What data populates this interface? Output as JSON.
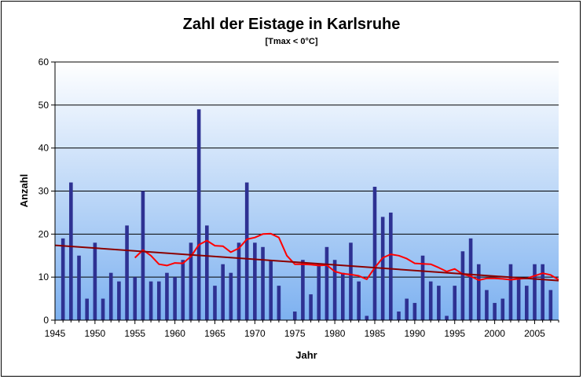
{
  "chart_data": {
    "type": "bar",
    "title": "Zahl der Eistage in Karlsruhe",
    "subtitle": "[Tmax < 0°C]",
    "xlabel": "Jahr",
    "ylabel": "Anzahl",
    "xlim": [
      1945,
      2008
    ],
    "ylim": [
      0,
      60
    ],
    "x_ticks": [
      "1945",
      "1950",
      "1955",
      "1960",
      "1965",
      "1970",
      "1975",
      "1980",
      "1985",
      "1990",
      "1995",
      "2000",
      "2005"
    ],
    "y_ticks": [
      "0",
      "10",
      "20",
      "30",
      "40",
      "50",
      "60"
    ],
    "grid": true,
    "legend": "none",
    "series": [
      {
        "kind": "bar",
        "color": "#2e3192",
        "x": [
          1946,
          1947,
          1948,
          1949,
          1950,
          1951,
          1952,
          1953,
          1954,
          1955,
          1956,
          1957,
          1958,
          1959,
          1960,
          1961,
          1962,
          1963,
          1964,
          1965,
          1966,
          1967,
          1968,
          1969,
          1970,
          1971,
          1972,
          1973,
          1974,
          1975,
          1976,
          1977,
          1978,
          1979,
          1980,
          1981,
          1982,
          1983,
          1984,
          1985,
          1986,
          1987,
          1988,
          1989,
          1990,
          1991,
          1992,
          1993,
          1994,
          1995,
          1996,
          1997,
          1998,
          1999,
          2000,
          2001,
          2002,
          2003,
          2004,
          2005,
          2006,
          2007
        ],
        "values": [
          19,
          32,
          15,
          5,
          18,
          5,
          11,
          9,
          22,
          10,
          30,
          9,
          9,
          11,
          10,
          14,
          18,
          49,
          22,
          8,
          13,
          11,
          18,
          32,
          18,
          17,
          14,
          8,
          0,
          2,
          14,
          6,
          13,
          17,
          14,
          11,
          18,
          9,
          1,
          31,
          24,
          25,
          2,
          5,
          4,
          15,
          9,
          8,
          1,
          8,
          16,
          19,
          13,
          7,
          4,
          5,
          13,
          10,
          8,
          13,
          13,
          7
        ]
      },
      {
        "kind": "line",
        "color": "#ff0000",
        "x": [
          1955,
          1956,
          1957,
          1958,
          1959,
          1960,
          1961,
          1962,
          1963,
          1964,
          1965,
          1966,
          1967,
          1968,
          1969,
          1970,
          1971,
          1972,
          1973,
          1974,
          1975,
          1976,
          1977,
          1978,
          1979,
          1980,
          1981,
          1982,
          1983,
          1984,
          1985,
          1986,
          1987,
          1988,
          1989,
          1990,
          1991,
          1992,
          1993,
          1994,
          1995,
          1996,
          1997,
          1998,
          1999,
          2000,
          2001,
          2002,
          2003,
          2004,
          2005,
          2006,
          2007,
          2008
        ],
        "values": [
          14.5,
          16.3,
          15,
          13,
          12.7,
          13.3,
          13.2,
          14.8,
          17.5,
          18.5,
          17.3,
          17.2,
          15.8,
          16.7,
          18.8,
          19.2,
          20,
          20.1,
          19.2,
          15,
          13,
          13,
          12.9,
          12.7,
          12.8,
          11.3,
          10.8,
          10.6,
          10.3,
          9.5,
          12.2,
          14.5,
          15.3,
          15,
          14.3,
          13.2,
          13.1,
          13,
          12.2,
          11.3,
          11.9,
          10.7,
          10.2,
          9.3,
          9.7,
          9.7,
          9.6,
          9.4,
          9.6,
          9.7,
          10.3,
          10.9,
          10.5,
          9.4
        ]
      },
      {
        "kind": "line",
        "color": "#8b0000",
        "x": [
          1945,
          2008
        ],
        "values": [
          17.4,
          9.2
        ]
      }
    ]
  }
}
